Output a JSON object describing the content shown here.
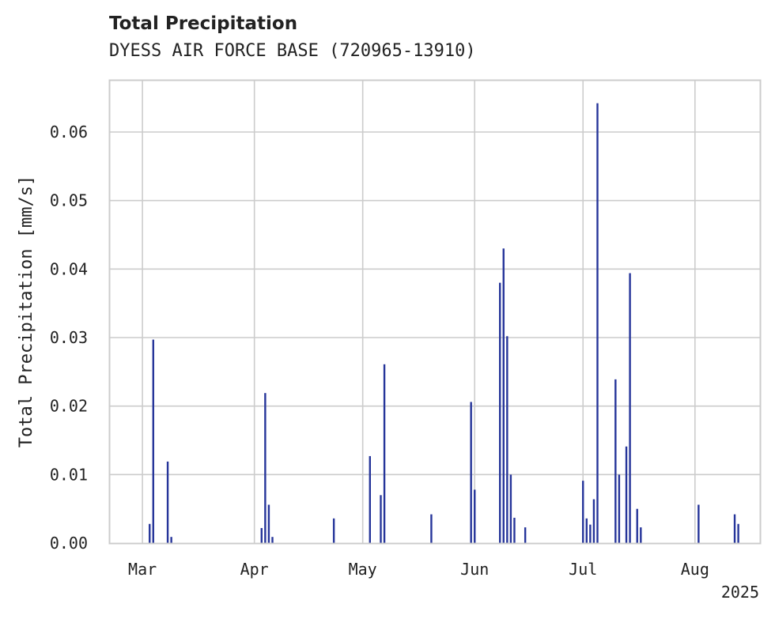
{
  "chart_data": {
    "type": "bar",
    "title": "Total Precipitation",
    "subtitle": "DYESS AIR FORCE BASE (720965-13910)",
    "xlabel": "",
    "ylabel": "Total Precipitation [mm/s]",
    "x_range": [
      "2025-02-20",
      "2025-08-19"
    ],
    "ylim": [
      0,
      0.0675
    ],
    "y_ticks": [
      {
        "value": 0.0,
        "label": "0.00"
      },
      {
        "value": 0.01,
        "label": "0.01"
      },
      {
        "value": 0.02,
        "label": "0.02"
      },
      {
        "value": 0.03,
        "label": "0.03"
      },
      {
        "value": 0.04,
        "label": "0.04"
      },
      {
        "value": 0.05,
        "label": "0.05"
      },
      {
        "value": 0.06,
        "label": "0.06"
      }
    ],
    "x_ticks": [
      {
        "date": "2025-03-01",
        "label": "Mar"
      },
      {
        "date": "2025-04-01",
        "label": "Apr"
      },
      {
        "date": "2025-05-01",
        "label": "May"
      },
      {
        "date": "2025-06-01",
        "label": "Jun"
      },
      {
        "date": "2025-07-01",
        "label": "Jul"
      },
      {
        "date": "2025-08-01",
        "label": "Aug"
      }
    ],
    "year_label": "2025",
    "grid": true,
    "series": [
      {
        "color": "#26359a",
        "points": [
          {
            "date": "2025-03-03",
            "value": 0.0028
          },
          {
            "date": "2025-03-04",
            "value": 0.0297
          },
          {
            "date": "2025-03-08",
            "value": 0.0119
          },
          {
            "date": "2025-03-09",
            "value": 0.0009
          },
          {
            "date": "2025-04-03",
            "value": 0.0022
          },
          {
            "date": "2025-04-04",
            "value": 0.0219
          },
          {
            "date": "2025-04-05",
            "value": 0.0056
          },
          {
            "date": "2025-04-06",
            "value": 0.0009
          },
          {
            "date": "2025-04-23",
            "value": 0.0036
          },
          {
            "date": "2025-05-03",
            "value": 0.0127
          },
          {
            "date": "2025-05-06",
            "value": 0.007
          },
          {
            "date": "2025-05-07",
            "value": 0.0261
          },
          {
            "date": "2025-05-20",
            "value": 0.0042
          },
          {
            "date": "2025-05-31",
            "value": 0.0206
          },
          {
            "date": "2025-06-01",
            "value": 0.0078
          },
          {
            "date": "2025-06-08",
            "value": 0.038
          },
          {
            "date": "2025-06-09",
            "value": 0.043
          },
          {
            "date": "2025-06-10",
            "value": 0.0302
          },
          {
            "date": "2025-06-11",
            "value": 0.01
          },
          {
            "date": "2025-06-12",
            "value": 0.0037
          },
          {
            "date": "2025-06-15",
            "value": 0.0023
          },
          {
            "date": "2025-07-01",
            "value": 0.0091
          },
          {
            "date": "2025-07-02",
            "value": 0.0036
          },
          {
            "date": "2025-07-03",
            "value": 0.0027
          },
          {
            "date": "2025-07-04",
            "value": 0.0064
          },
          {
            "date": "2025-07-05",
            "value": 0.0642
          },
          {
            "date": "2025-07-10",
            "value": 0.0239
          },
          {
            "date": "2025-07-11",
            "value": 0.01
          },
          {
            "date": "2025-07-13",
            "value": 0.0141
          },
          {
            "date": "2025-07-14",
            "value": 0.0394
          },
          {
            "date": "2025-07-16",
            "value": 0.005
          },
          {
            "date": "2025-07-17",
            "value": 0.0023
          },
          {
            "date": "2025-08-02",
            "value": 0.0056
          },
          {
            "date": "2025-08-12",
            "value": 0.0042
          },
          {
            "date": "2025-08-13",
            "value": 0.0028
          }
        ]
      }
    ]
  }
}
